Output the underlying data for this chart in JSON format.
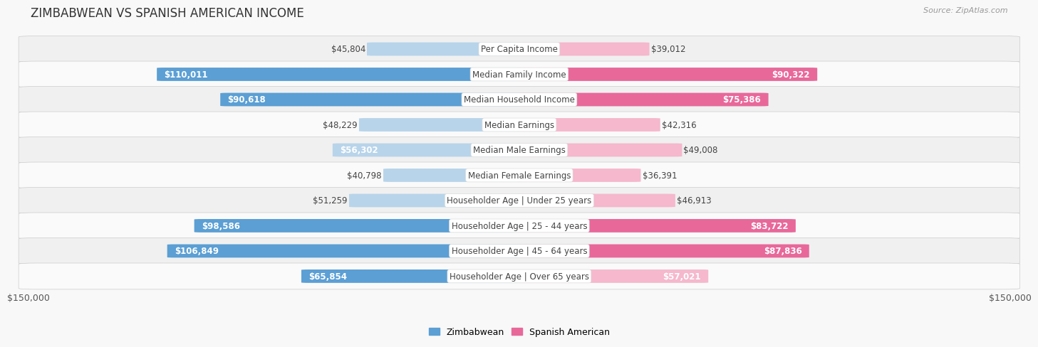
{
  "title": "ZIMBABWEAN VS SPANISH AMERICAN INCOME",
  "source": "Source: ZipAtlas.com",
  "categories": [
    "Per Capita Income",
    "Median Family Income",
    "Median Household Income",
    "Median Earnings",
    "Median Male Earnings",
    "Median Female Earnings",
    "Householder Age | Under 25 years",
    "Householder Age | 25 - 44 years",
    "Householder Age | 45 - 64 years",
    "Householder Age | Over 65 years"
  ],
  "zimbabwean": [
    45804,
    110011,
    90618,
    48229,
    56302,
    40798,
    51259,
    98586,
    106849,
    65854
  ],
  "spanish_american": [
    39012,
    90322,
    75386,
    42316,
    49008,
    36391,
    46913,
    83722,
    87836,
    57021
  ],
  "max_val": 150000,
  "blue_light": "#b8d4ea",
  "blue_dark": "#5b9fd4",
  "pink_light": "#f5b8cc",
  "pink_dark": "#e8689a",
  "bar_threshold": 60000,
  "bar_height": 0.52,
  "row_colors": [
    "#f0f0f0",
    "#fafafa"
  ],
  "title_fontsize": 12,
  "tick_fontsize": 9,
  "cat_fontsize": 8.5,
  "value_fontsize": 8.5,
  "legend_fontsize": 9,
  "inside_label_threshold": 55000
}
